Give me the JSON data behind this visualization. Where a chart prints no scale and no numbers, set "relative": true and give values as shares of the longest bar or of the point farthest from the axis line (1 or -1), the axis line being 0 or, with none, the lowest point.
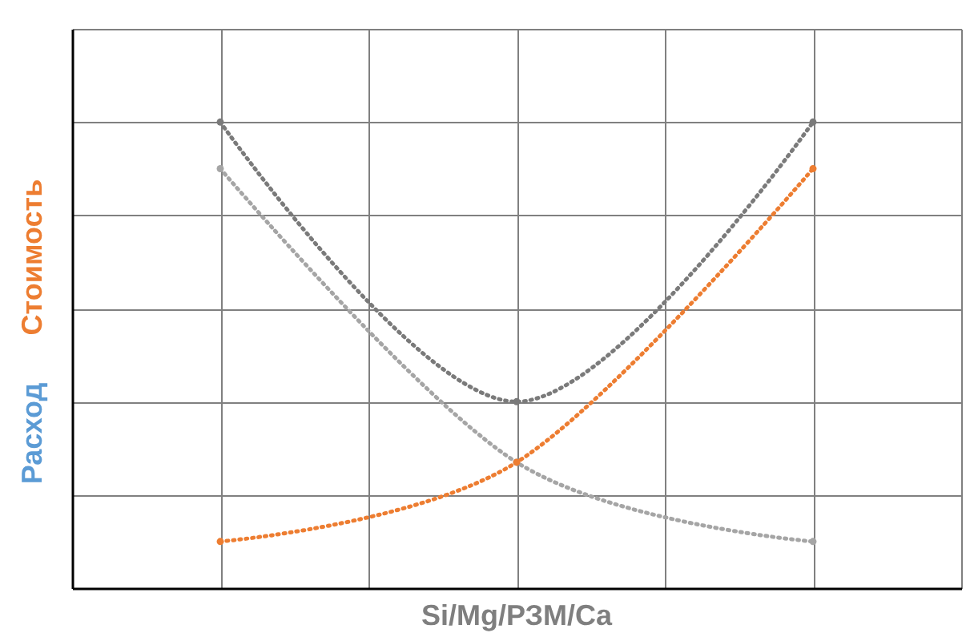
{
  "chart_data": {
    "type": "line",
    "xlabel": "Si/Mg/РЗМ/Ca",
    "ylabel": "Расход Стоимость",
    "relative": true,
    "categories": [
      null,
      null,
      null
    ],
    "series": [
      {
        "color": "#7a7a7a",
        "values": [
          1.0,
          0.4,
          1.0
        ]
      },
      {
        "color": "#a5a5a5",
        "values": [
          0.9,
          0.27,
          0.1
        ]
      },
      {
        "color": "#ed7d31",
        "values": [
          0.1,
          0.27,
          0.9
        ]
      }
    ],
    "grid": true,
    "marker": "circle",
    "line_style": "dotted"
  }
}
